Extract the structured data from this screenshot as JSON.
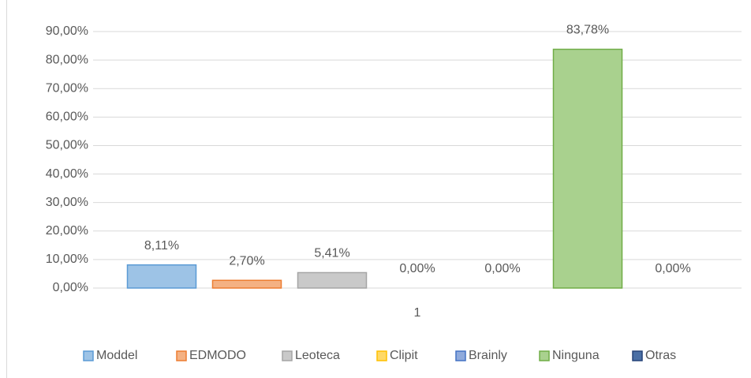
{
  "chart_data": {
    "type": "bar",
    "categories": [
      "1"
    ],
    "series": [
      {
        "name": "Moddel",
        "color": "#9dc3e6",
        "border": "#5b9bd5",
        "values": [
          8.11
        ],
        "value_labels": [
          "8,11%"
        ]
      },
      {
        "name": "EDMODO",
        "color": "#f4b183",
        "border": "#ed7d31",
        "values": [
          2.7
        ],
        "value_labels": [
          "2,70%"
        ]
      },
      {
        "name": "Leoteca",
        "color": "#c9c9c9",
        "border": "#a5a5a5",
        "values": [
          5.41
        ],
        "value_labels": [
          "5,41%"
        ]
      },
      {
        "name": "Clipit",
        "color": "#ffd966",
        "border": "#ffc000",
        "values": [
          0
        ],
        "value_labels": [
          "0,00%"
        ]
      },
      {
        "name": "Brainly",
        "color": "#8faadc",
        "border": "#4472c4",
        "values": [
          0
        ],
        "value_labels": [
          "0,00%"
        ]
      },
      {
        "name": "Ninguna",
        "color": "#a9d18e",
        "border": "#70ad47",
        "values": [
          83.78
        ],
        "value_labels": [
          "83,78%"
        ]
      },
      {
        "name": "Otras",
        "color": "#4a6fa5",
        "border": "#264478",
        "values": [
          0
        ],
        "value_labels": [
          "0,00%"
        ]
      }
    ],
    "ylim": [
      0,
      90
    ],
    "yticks": [
      {
        "value": 0,
        "label": "0,00%"
      },
      {
        "value": 10,
        "label": "10,00%"
      },
      {
        "value": 20,
        "label": "20,00%"
      },
      {
        "value": 30,
        "label": "30,00%"
      },
      {
        "value": 40,
        "label": "40,00%"
      },
      {
        "value": 50,
        "label": "50,00%"
      },
      {
        "value": 60,
        "label": "60,00%"
      },
      {
        "value": 70,
        "label": "70,00%"
      },
      {
        "value": 80,
        "label": "80,00%"
      },
      {
        "value": 90,
        "label": "90,00%"
      }
    ],
    "grid": true,
    "legend": "bottom"
  }
}
